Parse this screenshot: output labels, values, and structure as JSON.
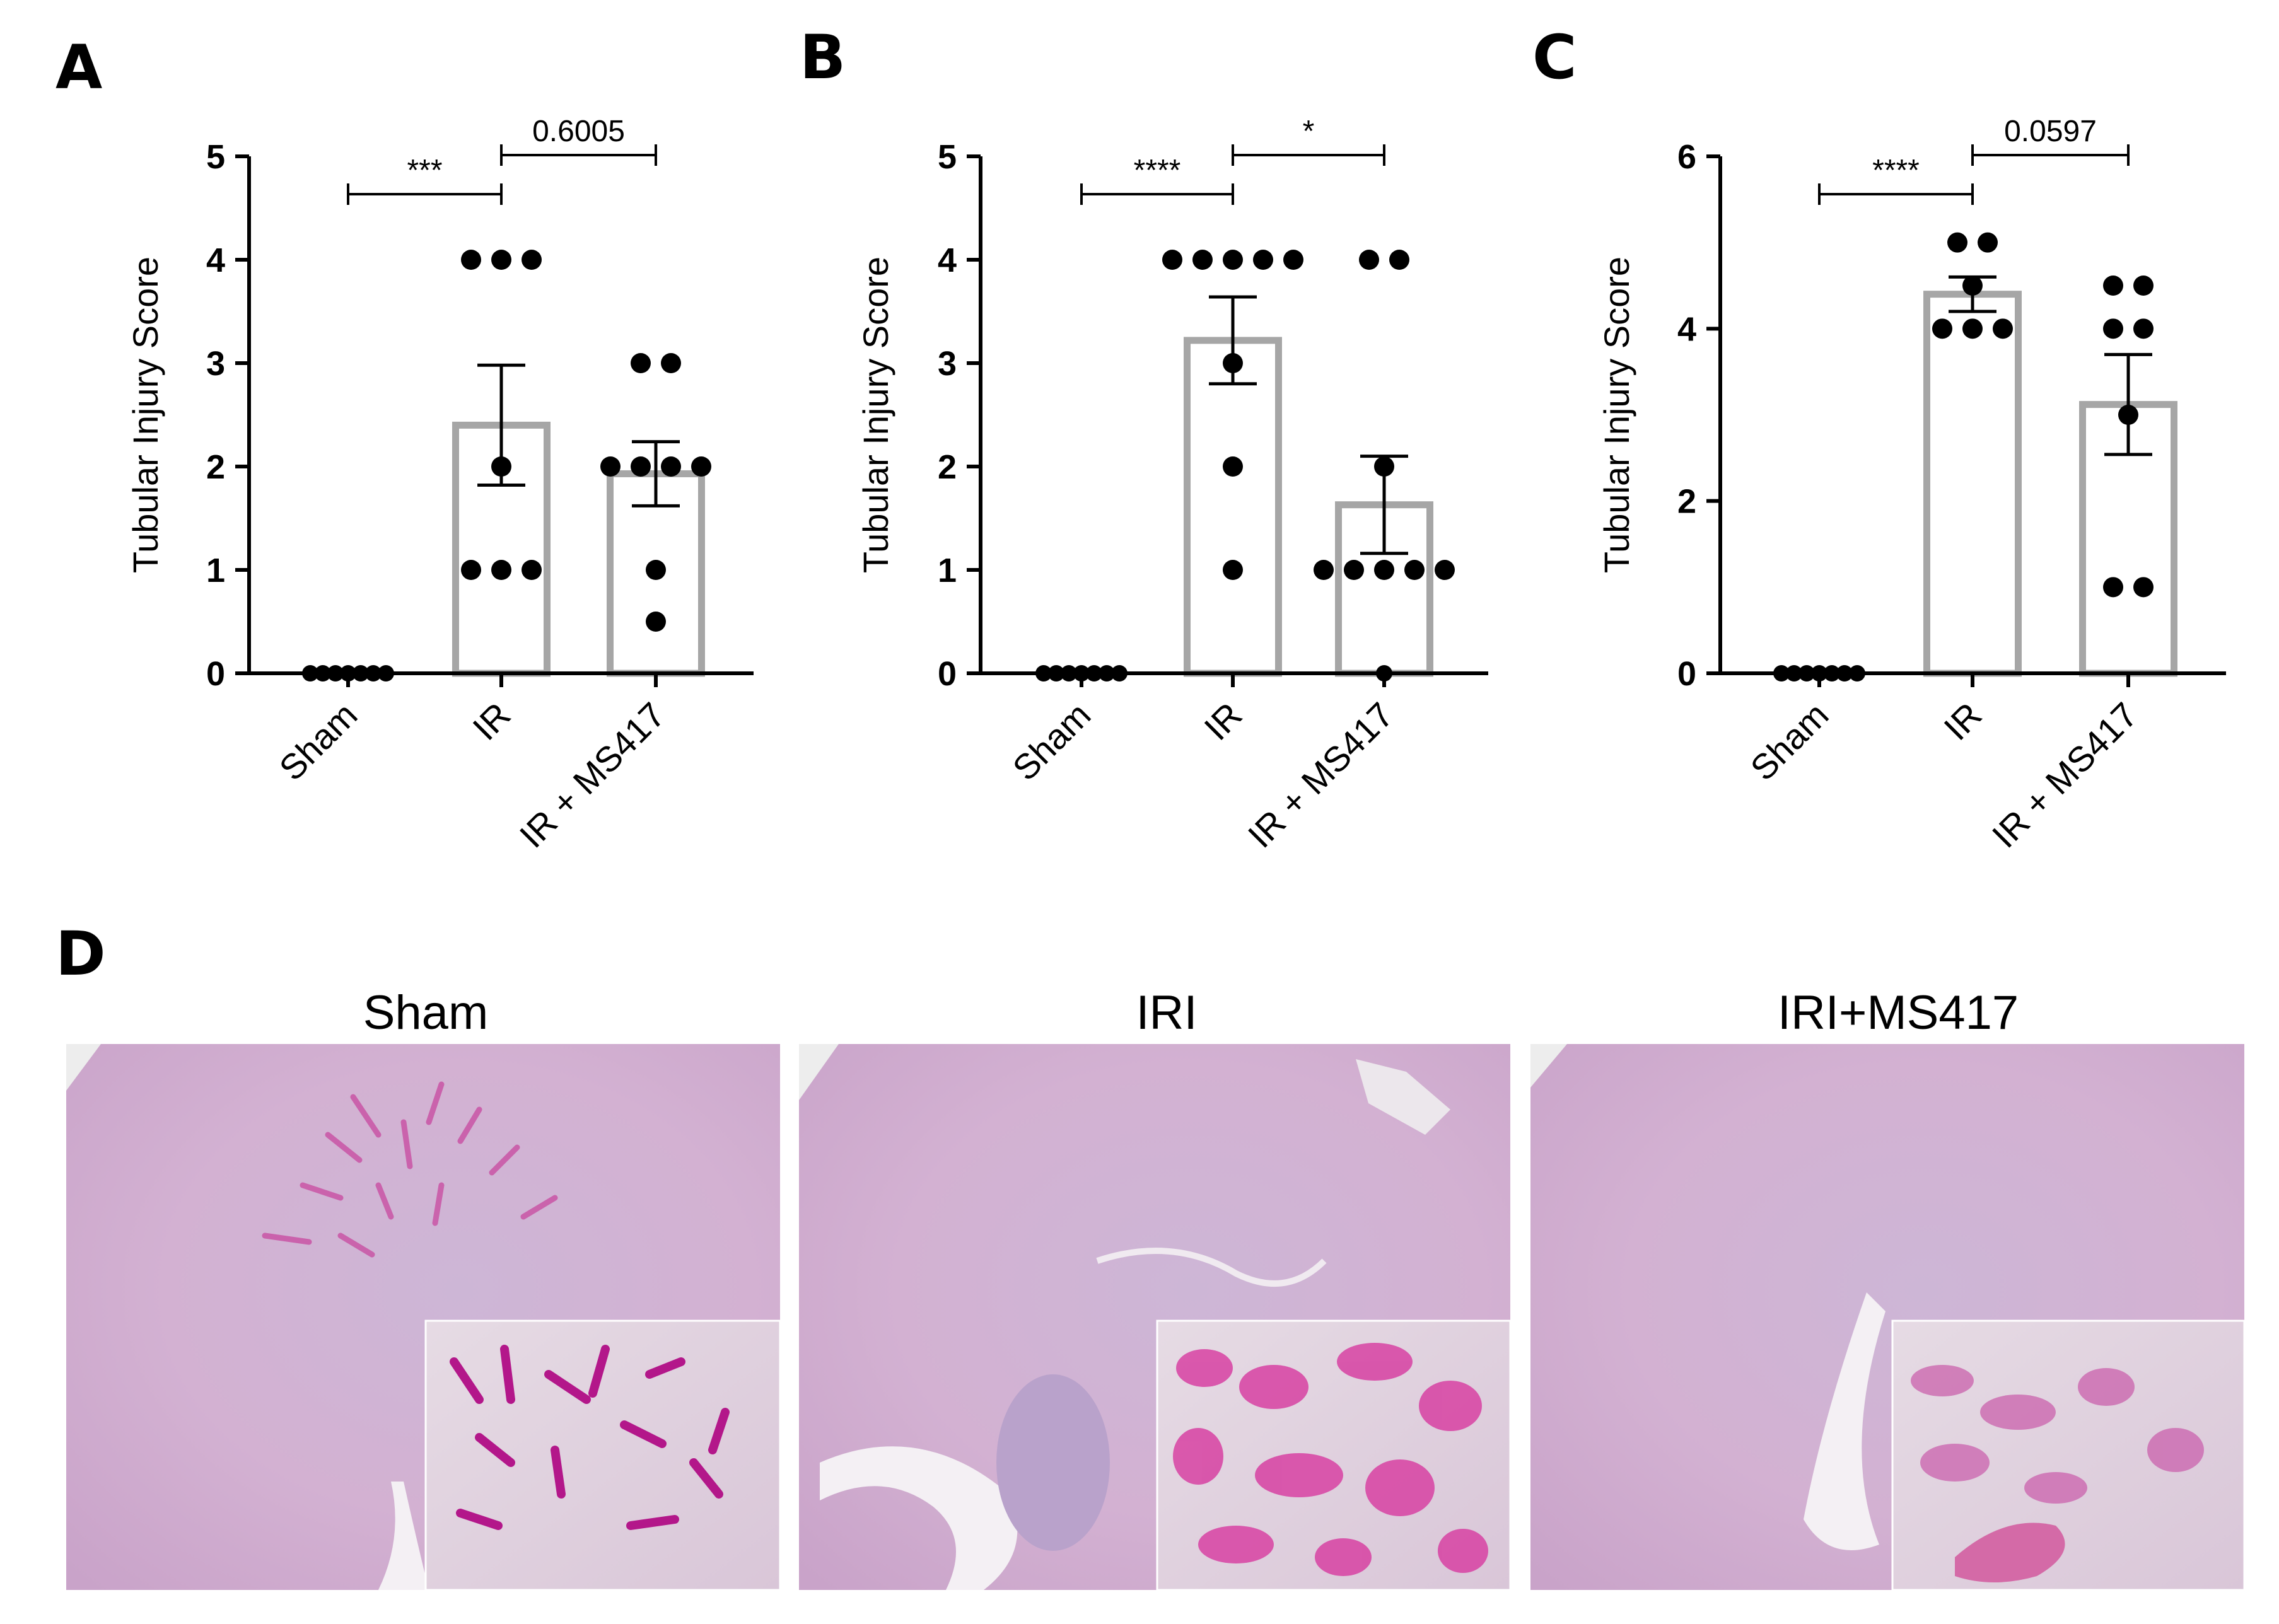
{
  "chart_data": [
    {
      "panel": "A",
      "type": "bar",
      "ylabel": "Tubular Injury Score",
      "ylim": [
        0,
        5
      ],
      "yticks": [
        0,
        1,
        2,
        3,
        4,
        5
      ],
      "categories": [
        "Sham",
        "IR",
        "IR + MS417"
      ],
      "means": [
        0,
        2.4,
        1.93
      ],
      "sem": [
        0,
        0.58,
        0.31
      ],
      "points": [
        [
          0,
          0,
          0,
          0,
          0,
          0,
          0
        ],
        [
          4,
          4,
          4,
          2,
          1,
          1,
          1
        ],
        [
          3,
          3,
          2,
          2,
          2,
          2,
          1,
          0.5
        ]
      ],
      "comparisons": [
        {
          "from": 0,
          "to": 1,
          "label": "***"
        },
        {
          "from": 1,
          "to": 2,
          "label": "0.6005"
        }
      ]
    },
    {
      "panel": "B",
      "type": "bar",
      "ylabel": "Tubular Injury Score",
      "ylim": [
        0,
        5
      ],
      "yticks": [
        0,
        1,
        2,
        3,
        4,
        5
      ],
      "categories": [
        "Sham",
        "IR",
        "IR + MS417"
      ],
      "means": [
        0,
        3.22,
        1.63
      ],
      "sem": [
        0,
        0.42,
        0.47
      ],
      "points": [
        [
          0,
          0,
          0,
          0,
          0,
          0,
          0
        ],
        [
          4,
          4,
          4,
          4,
          4,
          3,
          2,
          1
        ],
        [
          4,
          4,
          2,
          1,
          1,
          1,
          1,
          1,
          0
        ]
      ],
      "comparisons": [
        {
          "from": 0,
          "to": 1,
          "label": "****"
        },
        {
          "from": 1,
          "to": 2,
          "label": "*"
        }
      ]
    },
    {
      "panel": "C",
      "type": "bar",
      "ylabel": "Tubular Injury Score",
      "ylim": [
        0,
        6
      ],
      "yticks": [
        0,
        2,
        4,
        6
      ],
      "categories": [
        "Sham",
        "IR",
        "IR + MS417"
      ],
      "means": [
        0,
        4.4,
        3.12
      ],
      "sem": [
        0,
        0.2,
        0.58
      ],
      "points": [
        [
          0,
          0,
          0,
          0,
          0,
          0,
          0
        ],
        [
          5,
          5,
          4.5,
          4,
          4,
          4
        ],
        [
          4.5,
          4.5,
          4,
          4,
          3,
          1,
          1
        ]
      ],
      "comparisons": [
        {
          "from": 0,
          "to": 1,
          "label": "****"
        },
        {
          "from": 1,
          "to": 2,
          "label": "0.0597"
        }
      ]
    }
  ],
  "histology": {
    "panel": "D",
    "titles": [
      "Sham",
      "IRI",
      "IRI+MS417"
    ],
    "stain_colors": {
      "background": "#c9a8cf",
      "tissue_light": "#d8c2dc",
      "pink": "#c93f9c",
      "nuclei": "#6e4f8f",
      "lumen": "#f2eef3"
    }
  }
}
